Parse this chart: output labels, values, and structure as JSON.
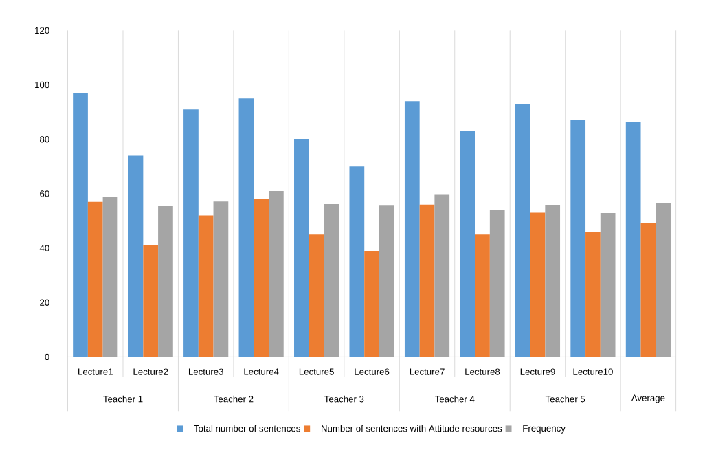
{
  "chart_data": {
    "type": "bar",
    "categories": [
      "Lecture1",
      "Lecture2",
      "Lecture3",
      "Lecture4",
      "Lecture5",
      "Lecture6",
      "Lecture7",
      "Lecture8",
      "Lecture9",
      "Lecture10",
      null
    ],
    "annotations": [
      "Teacher 1",
      "Teacher 2",
      "Teacher 3",
      "Teacher 4",
      "Teacher 5",
      "Average"
    ],
    "series": [
      {
        "name": "Total number of sentences",
        "color": "#5b9bd5",
        "values": [
          97,
          74,
          91,
          95,
          80,
          70,
          94,
          83,
          93,
          87,
          86.4
        ]
      },
      {
        "name": "Number of sentences with Attitude resources",
        "color": "#ed7d31",
        "values": [
          57,
          41,
          52,
          58,
          45,
          39,
          56,
          45,
          53,
          46,
          49.2
        ]
      },
      {
        "name": "Frequency",
        "color": "#a5a5a5",
        "values": [
          58.8,
          55.4,
          57.1,
          61,
          56.2,
          55.6,
          59.6,
          54.1,
          55.9,
          52.9,
          56.7
        ]
      }
    ],
    "ylim": [
      0,
      120
    ],
    "yticks": [
      0,
      20,
      40,
      60,
      80,
      100,
      120
    ],
    "grid": "x",
    "legend": "bottom"
  }
}
